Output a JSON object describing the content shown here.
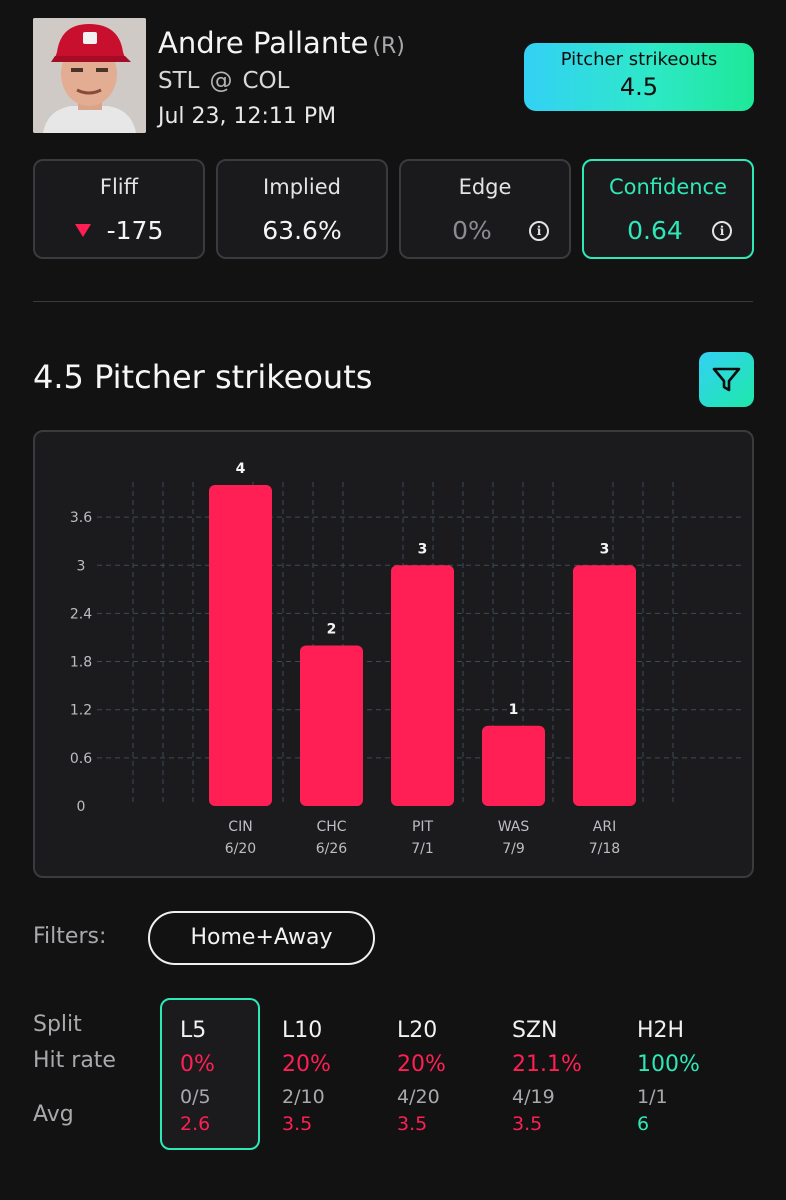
{
  "player": {
    "name": "Andre Pallante",
    "hand": "(R)",
    "team": "STL",
    "at": "@",
    "opponent": "COL",
    "datetime": "Jul 23, 12:11 PM"
  },
  "market": {
    "label": "Pitcher strikeouts",
    "line": "4.5"
  },
  "stats": {
    "fliff": {
      "title": "Fliff",
      "value": "-175",
      "trend_icon": "down-triangle-icon"
    },
    "implied": {
      "title": "Implied",
      "value": "63.6%"
    },
    "edge": {
      "title": "Edge",
      "value": "0%",
      "icon": "info-icon"
    },
    "confidence": {
      "title": "Confidence",
      "value": "0.64",
      "icon": "info-icon"
    }
  },
  "section": {
    "title": "4.5 Pitcher strikeouts",
    "filter_icon": "filter-funnel-icon"
  },
  "chart_data": {
    "type": "bar",
    "categories": [
      "CIN",
      "CHC",
      "PIT",
      "WAS",
      "ARI"
    ],
    "dates": [
      "6/20",
      "6/26",
      "7/1",
      "7/9",
      "7/18"
    ],
    "values": [
      4,
      2,
      3,
      1,
      3
    ],
    "value_labels": [
      "4",
      "2",
      "3",
      "1",
      "3"
    ],
    "yticks": [
      "0",
      "0.6",
      "1.2",
      "1.8",
      "2.4",
      "3",
      "3.6"
    ],
    "ytick_values": [
      0,
      0.6,
      1.2,
      1.8,
      2.4,
      3,
      3.6
    ],
    "ylim": [
      0,
      4
    ],
    "grid": true,
    "bar_color": "#ff1f55"
  },
  "filters": {
    "label": "Filters:",
    "selected": "Home+Away"
  },
  "splits": {
    "labels": {
      "split": "Split",
      "hit_rate": "Hit rate",
      "avg": "Avg"
    },
    "columns": [
      {
        "name": "L5",
        "rate": "0%",
        "frac": "0/5",
        "avg": "2.6",
        "tone": "red",
        "active": true
      },
      {
        "name": "L10",
        "rate": "20%",
        "frac": "2/10",
        "avg": "3.5",
        "tone": "red",
        "active": false
      },
      {
        "name": "L20",
        "rate": "20%",
        "frac": "4/20",
        "avg": "3.5",
        "tone": "red",
        "active": false
      },
      {
        "name": "SZN",
        "rate": "21.1%",
        "frac": "4/19",
        "avg": "3.5",
        "tone": "red",
        "active": false
      },
      {
        "name": "H2H",
        "rate": "100%",
        "frac": "1/1",
        "avg": "6",
        "tone": "green",
        "active": false
      }
    ]
  },
  "colors": {
    "accent_green": "#2ee8b8",
    "accent_red": "#ff1f55",
    "background": "#121212"
  }
}
